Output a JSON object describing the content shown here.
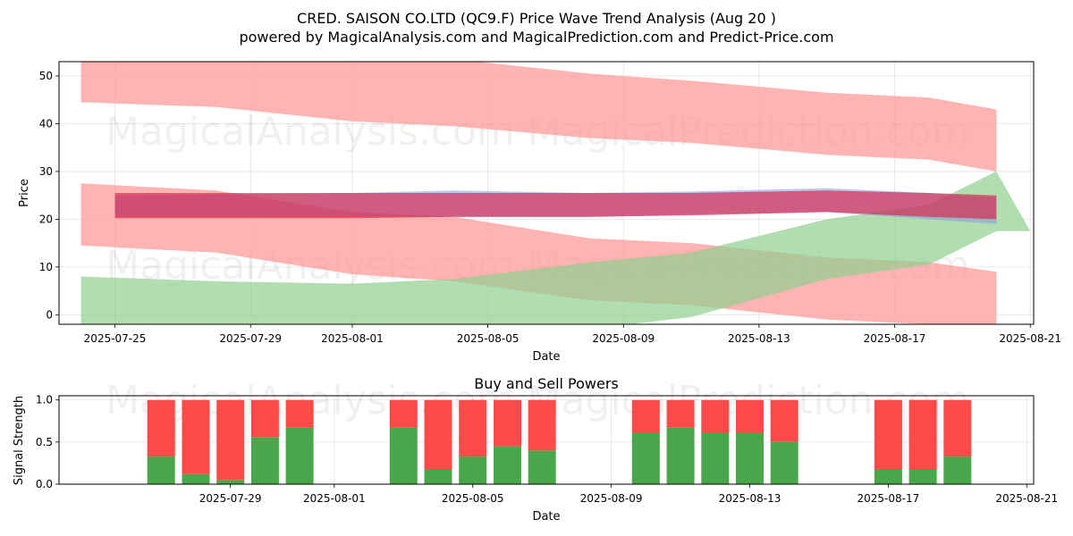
{
  "title_line1": "CRED. SAISON CO.LTD (QC9.F) Price Wave Trend Analysis (Aug 20 )",
  "title_line2": "powered by MagicalAnalysis.com and MagicalPrediction.com and Predict-Price.com",
  "watermarks": [
    "MagicalAnalysis.com",
    "MagicalPrediction.com"
  ],
  "colors": {
    "red_band": "#ff9999",
    "green_band": "#90d090",
    "blue_band": "#8899dd",
    "crimson": "#dc143c",
    "buy": "#4aa64a",
    "sell": "#ff4a4a"
  },
  "chart_data": [
    {
      "type": "area",
      "xlabel": "Date",
      "ylabel": "Price",
      "ylim": [
        -2,
        53
      ],
      "yticks": [
        0,
        10,
        20,
        30,
        40,
        50
      ],
      "xticks": [
        "2025-07-25",
        "2025-07-29",
        "2025-08-01",
        "2025-08-05",
        "2025-08-09",
        "2025-08-13",
        "2025-08-17",
        "2025-08-21"
      ],
      "xlim": [
        "2025-07-23",
        "2025-08-21"
      ],
      "grid": true,
      "bands": [
        {
          "color": "red",
          "x": [
            "2025-07-24",
            "2025-07-28",
            "2025-08-01",
            "2025-08-04",
            "2025-08-08",
            "2025-08-11",
            "2025-08-15",
            "2025-08-18",
            "2025-08-20"
          ],
          "lower": [
            44.5,
            43.5,
            40.5,
            39.5,
            37,
            36,
            33.5,
            32.5,
            30
          ],
          "upper": [
            54,
            54,
            54,
            53.5,
            50.5,
            49,
            46.5,
            45.5,
            43
          ]
        },
        {
          "color": "red",
          "x": [
            "2025-07-24",
            "2025-07-28",
            "2025-08-01",
            "2025-08-04",
            "2025-08-08",
            "2025-08-11",
            "2025-08-15",
            "2025-08-18",
            "2025-08-20"
          ],
          "lower": [
            14.5,
            13,
            8.5,
            7,
            3,
            2,
            -1,
            -2,
            -2.5
          ],
          "upper": [
            27.5,
            26,
            21.5,
            20.5,
            16,
            15,
            12,
            11,
            9
          ]
        },
        {
          "color": "green",
          "x": [
            "2025-07-24",
            "2025-07-28",
            "2025-08-01",
            "2025-08-04",
            "2025-08-08",
            "2025-08-11",
            "2025-08-15",
            "2025-08-18",
            "2025-08-20",
            "2025-08-21"
          ],
          "lower": [
            -3,
            -3,
            -3,
            -3,
            -3,
            -0.5,
            7.5,
            10.5,
            17.5,
            17.5
          ],
          "upper": [
            8,
            7,
            6.5,
            7.5,
            11,
            13,
            20,
            23,
            30,
            17.5
          ]
        },
        {
          "color": "blue",
          "x": [
            "2025-07-25",
            "2025-08-01",
            "2025-08-04",
            "2025-08-08",
            "2025-08-11",
            "2025-08-15",
            "2025-08-18",
            "2025-08-20"
          ],
          "lower": [
            20.5,
            20.5,
            20.5,
            20.5,
            21,
            21.5,
            20,
            19
          ],
          "upper": [
            25,
            25.5,
            26,
            25.5,
            25.8,
            26.5,
            25.5,
            24.5
          ]
        },
        {
          "color": "crimson",
          "x": [
            "2025-07-25",
            "2025-08-01",
            "2025-08-04",
            "2025-08-08",
            "2025-08-11",
            "2025-08-15",
            "2025-08-18",
            "2025-08-20"
          ],
          "lower": [
            20.2,
            20.2,
            20.5,
            20.5,
            20.8,
            21.5,
            20.5,
            20
          ],
          "upper": [
            25.5,
            25.5,
            25.5,
            25.5,
            25.5,
            26,
            25.5,
            25
          ]
        }
      ]
    },
    {
      "type": "bar",
      "title": "Buy and Sell Powers",
      "xlabel": "Date",
      "ylabel": "Signal Strength",
      "ylim": [
        0,
        1.05
      ],
      "yticks": [
        "0.0",
        "0.5",
        "1.0"
      ],
      "xticks": [
        "2025-07-29",
        "2025-08-01",
        "2025-08-05",
        "2025-08-09",
        "2025-08-13",
        "2025-08-17",
        "2025-08-21"
      ],
      "xlim": [
        "2025-07-24",
        "2025-08-21"
      ],
      "grid": true,
      "categories": [
        "2025-07-27",
        "2025-07-28",
        "2025-07-29",
        "2025-07-30",
        "2025-07-31",
        "2025-08-03",
        "2025-08-04",
        "2025-08-05",
        "2025-08-06",
        "2025-08-07",
        "2025-08-10",
        "2025-08-11",
        "2025-08-12",
        "2025-08-13",
        "2025-08-14",
        "2025-08-17",
        "2025-08-18",
        "2025-08-19"
      ],
      "series": [
        {
          "name": "buy",
          "values": [
            0.33,
            0.12,
            0.05,
            0.56,
            0.67,
            0.67,
            0.17,
            0.33,
            0.45,
            0.4,
            0.61,
            0.67,
            0.61,
            0.61,
            0.5,
            0.17,
            0.17,
            0.33
          ]
        },
        {
          "name": "sell",
          "values": [
            0.67,
            0.88,
            0.95,
            0.44,
            0.33,
            0.33,
            0.83,
            0.67,
            0.55,
            0.6,
            0.39,
            0.33,
            0.39,
            0.39,
            0.5,
            0.83,
            0.83,
            0.67
          ]
        }
      ]
    }
  ]
}
